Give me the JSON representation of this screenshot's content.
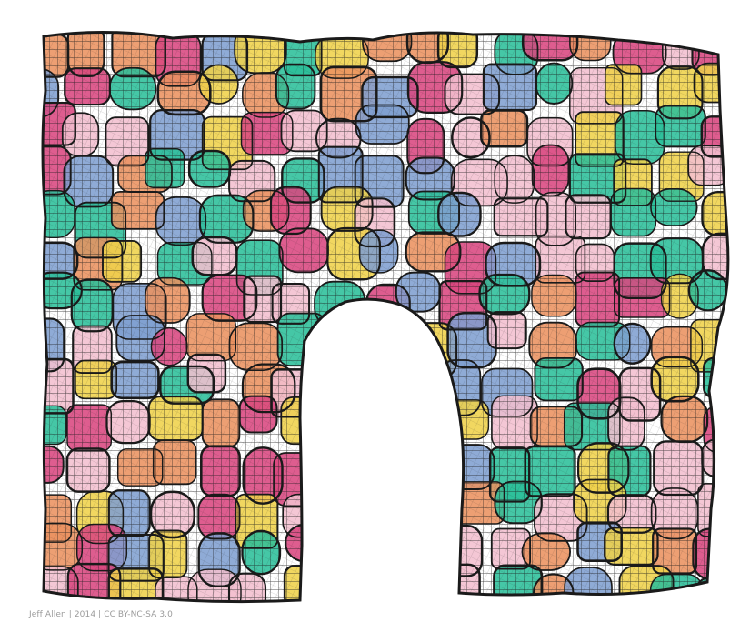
{
  "artwork": {
    "credit": "Jeff Allen | 2014 | CC BY-NC-SA 3.0",
    "palette": [
      "#2bbf9a",
      "#efd14a",
      "#ea9260",
      "#7f9fd0",
      "#d9477f",
      "#f2bfcf"
    ],
    "line_color": "#1a1a1a",
    "motif": "hand-drawn arch of colored cells filled with grid hatching"
  }
}
